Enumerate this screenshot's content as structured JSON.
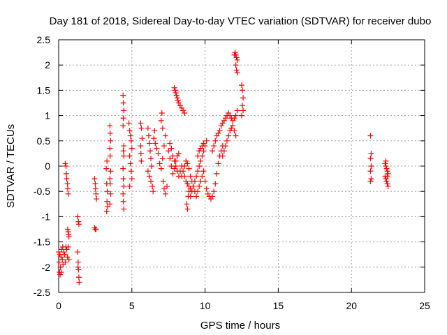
{
  "chart_data": {
    "type": "scatter",
    "title": "Day 181 of 2018, Sidereal Day-to-day VTEC variation (SDTVAR) for receiver dubo",
    "xlabel": "GPS time / hours",
    "ylabel": "SDTVAR / TECUs",
    "xlim": [
      0,
      25
    ],
    "ylim": [
      -2.5,
      2.5
    ],
    "xticks": [
      "0",
      "5",
      "10",
      "15",
      "20",
      "25"
    ],
    "yticks": [
      "-2.5",
      "-2",
      "-1.5",
      "-1",
      "-0.5",
      "0",
      "0.5",
      "1",
      "1.5",
      "2",
      "2.5"
    ],
    "grid": true,
    "marker": "+",
    "color": "#ff0000",
    "series": [
      {
        "name": "SDTVAR",
        "points": [
          [
            0.0,
            -1.7
          ],
          [
            0.03,
            -1.9
          ],
          [
            0.06,
            -2.1
          ],
          [
            0.1,
            -2.15
          ],
          [
            0.13,
            -2.0
          ],
          [
            0.16,
            -1.8
          ],
          [
            0.2,
            -1.65
          ],
          [
            0.25,
            -1.85
          ],
          [
            0.3,
            -1.95
          ],
          [
            0.35,
            -1.7
          ],
          [
            0.4,
            -1.75
          ],
          [
            0.45,
            -1.9
          ],
          [
            0.5,
            -1.6
          ],
          [
            0.55,
            -1.65
          ],
          [
            0.6,
            -1.8
          ],
          [
            0.65,
            -1.6
          ],
          [
            0.7,
            -1.85
          ],
          [
            0.08,
            -1.75
          ],
          [
            0.18,
            -2.1
          ],
          [
            0.28,
            -1.6
          ],
          [
            0.45,
            0.05
          ],
          [
            0.5,
            0.0
          ],
          [
            0.52,
            -0.15
          ],
          [
            0.55,
            -0.25
          ],
          [
            0.6,
            -0.35
          ],
          [
            0.62,
            -0.45
          ],
          [
            0.65,
            -0.55
          ],
          [
            0.62,
            -1.25
          ],
          [
            0.65,
            -1.3
          ],
          [
            0.68,
            -1.35
          ],
          [
            0.7,
            -1.4
          ],
          [
            1.3,
            -1.0
          ],
          [
            1.35,
            -1.1
          ],
          [
            1.38,
            -1.15
          ],
          [
            1.3,
            -1.7
          ],
          [
            1.33,
            -1.9
          ],
          [
            1.35,
            -2.05
          ],
          [
            1.38,
            -2.2
          ],
          [
            1.4,
            -2.3
          ],
          [
            1.32,
            -2.0
          ],
          [
            2.45,
            -1.22
          ],
          [
            2.5,
            -1.25
          ],
          [
            2.55,
            -1.25
          ],
          [
            2.45,
            -0.25
          ],
          [
            2.5,
            -0.35
          ],
          [
            2.52,
            -0.45
          ],
          [
            2.55,
            -0.55
          ],
          [
            2.58,
            -0.65
          ],
          [
            3.25,
            -0.05
          ],
          [
            3.3,
            0.1
          ],
          [
            3.28,
            -0.35
          ],
          [
            3.32,
            -0.5
          ],
          [
            3.3,
            -0.7
          ],
          [
            3.35,
            -0.8
          ],
          [
            3.28,
            -0.9
          ],
          [
            3.5,
            0.8
          ],
          [
            3.52,
            0.65
          ],
          [
            3.55,
            0.5
          ],
          [
            3.5,
            0.35
          ],
          [
            3.52,
            0.2
          ],
          [
            3.55,
            -0.1
          ],
          [
            3.5,
            -0.25
          ],
          [
            3.52,
            -0.35
          ],
          [
            3.55,
            -0.55
          ],
          [
            3.5,
            -0.75
          ],
          [
            4.4,
            1.4
          ],
          [
            4.42,
            1.25
          ],
          [
            4.45,
            1.1
          ],
          [
            4.42,
            0.95
          ],
          [
            4.4,
            0.8
          ],
          [
            4.45,
            0.4
          ],
          [
            4.42,
            0.3
          ],
          [
            4.45,
            0.2
          ],
          [
            4.4,
            -0.05
          ],
          [
            4.42,
            -0.25
          ],
          [
            4.45,
            -0.4
          ],
          [
            4.4,
            -0.55
          ],
          [
            4.42,
            -0.7
          ],
          [
            4.45,
            -0.85
          ],
          [
            4.8,
            0.85
          ],
          [
            4.85,
            0.7
          ],
          [
            4.9,
            0.6
          ],
          [
            4.95,
            0.5
          ],
          [
            5.0,
            0.35
          ],
          [
            4.85,
            0.2
          ],
          [
            4.9,
            0.05
          ],
          [
            4.95,
            -0.1
          ],
          [
            5.0,
            -0.25
          ],
          [
            4.85,
            -0.4
          ],
          [
            5.6,
            0.85
          ],
          [
            5.65,
            0.75
          ],
          [
            5.7,
            0.55
          ],
          [
            5.6,
            0.4
          ],
          [
            5.62,
            0.25
          ],
          [
            5.65,
            0.1
          ],
          [
            6.1,
            0.75
          ],
          [
            6.15,
            0.6
          ],
          [
            6.2,
            0.45
          ],
          [
            6.25,
            0.3
          ],
          [
            6.3,
            0.15
          ],
          [
            6.35,
            0.0
          ],
          [
            6.1,
            -0.1
          ],
          [
            6.2,
            -0.2
          ],
          [
            6.3,
            -0.3
          ],
          [
            6.4,
            -0.4
          ],
          [
            6.45,
            -0.5
          ],
          [
            6.5,
            0.55
          ],
          [
            6.55,
            0.7
          ],
          [
            6.6,
            0.45
          ],
          [
            6.7,
            0.35
          ],
          [
            6.8,
            0.25
          ],
          [
            6.9,
            0.05
          ],
          [
            7.0,
            -0.05
          ],
          [
            7.1,
            0.15
          ],
          [
            7.2,
            0.4
          ],
          [
            7.3,
            0.6
          ],
          [
            7.0,
            0.9
          ],
          [
            7.05,
            1.05
          ],
          [
            7.1,
            0.75
          ],
          [
            7.15,
            -0.3
          ],
          [
            7.2,
            -0.45
          ],
          [
            7.3,
            -0.55
          ],
          [
            7.4,
            -0.4
          ],
          [
            7.5,
            0.3
          ],
          [
            7.6,
            0.15
          ],
          [
            7.7,
            0.0
          ],
          [
            7.8,
            -0.15
          ],
          [
            7.9,
            -0.05
          ],
          [
            8.0,
            0.1
          ],
          [
            8.1,
            0.2
          ],
          [
            8.2,
            0.25
          ],
          [
            7.6,
            0.45
          ],
          [
            7.7,
            0.35
          ],
          [
            7.8,
            0.2
          ],
          [
            7.9,
            0.1
          ],
          [
            8.0,
            0.0
          ],
          [
            8.1,
            -0.1
          ],
          [
            8.2,
            -0.2
          ],
          [
            8.3,
            -0.1
          ],
          [
            8.4,
            0.0
          ],
          [
            7.9,
            1.55
          ],
          [
            7.95,
            1.5
          ],
          [
            8.0,
            1.45
          ],
          [
            8.05,
            1.4
          ],
          [
            8.1,
            1.35
          ],
          [
            8.15,
            1.3
          ],
          [
            8.2,
            1.25
          ],
          [
            8.3,
            1.2
          ],
          [
            8.4,
            1.15
          ],
          [
            8.5,
            1.1
          ],
          [
            8.6,
            1.05
          ],
          [
            8.4,
            -0.2
          ],
          [
            8.5,
            -0.1
          ],
          [
            8.6,
            -0.2
          ],
          [
            8.7,
            -0.3
          ],
          [
            8.8,
            -0.35
          ],
          [
            8.9,
            -0.4
          ],
          [
            9.0,
            -0.45
          ],
          [
            8.6,
            0.0
          ],
          [
            8.7,
            0.1
          ],
          [
            8.8,
            0.05
          ],
          [
            8.9,
            -0.05
          ],
          [
            8.75,
            -0.75
          ],
          [
            8.8,
            -0.85
          ],
          [
            8.85,
            -0.6
          ],
          [
            8.9,
            -0.5
          ],
          [
            9.0,
            -0.6
          ],
          [
            9.1,
            -0.5
          ],
          [
            9.2,
            -0.4
          ],
          [
            9.3,
            -0.3
          ],
          [
            9.4,
            -0.2
          ],
          [
            9.5,
            -0.1
          ],
          [
            9.6,
            0.0
          ],
          [
            9.7,
            0.1
          ],
          [
            9.8,
            0.2
          ],
          [
            9.9,
            0.3
          ],
          [
            10.0,
            0.4
          ],
          [
            10.1,
            0.5
          ],
          [
            9.0,
            -0.2
          ],
          [
            9.1,
            -0.3
          ],
          [
            9.2,
            -0.4
          ],
          [
            9.3,
            -0.5
          ],
          [
            9.4,
            -0.6
          ],
          [
            9.5,
            -0.5
          ],
          [
            9.6,
            -0.4
          ],
          [
            9.7,
            -0.3
          ],
          [
            9.8,
            -0.2
          ],
          [
            9.9,
            -0.1
          ],
          [
            9.5,
            0.2
          ],
          [
            9.6,
            0.3
          ],
          [
            9.7,
            0.35
          ],
          [
            9.8,
            0.4
          ],
          [
            9.9,
            0.45
          ],
          [
            10.0,
            -0.3
          ],
          [
            10.1,
            -0.45
          ],
          [
            10.2,
            -0.55
          ],
          [
            10.3,
            -0.6
          ],
          [
            10.4,
            -0.65
          ],
          [
            10.5,
            -0.6
          ],
          [
            10.6,
            -0.5
          ],
          [
            10.7,
            -0.35
          ],
          [
            10.8,
            -0.15
          ],
          [
            10.9,
            0.05
          ],
          [
            11.0,
            0.2
          ],
          [
            11.1,
            0.3
          ],
          [
            11.2,
            0.4
          ],
          [
            10.5,
            0.3
          ],
          [
            10.6,
            0.4
          ],
          [
            10.7,
            0.5
          ],
          [
            10.8,
            0.6
          ],
          [
            10.9,
            0.65
          ],
          [
            11.0,
            0.7
          ],
          [
            11.1,
            0.8
          ],
          [
            11.2,
            0.85
          ],
          [
            11.3,
            0.9
          ],
          [
            11.4,
            0.95
          ],
          [
            11.5,
            1.0
          ],
          [
            11.6,
            1.05
          ],
          [
            11.7,
            1.0
          ],
          [
            11.8,
            0.95
          ],
          [
            11.9,
            0.9
          ],
          [
            12.0,
            0.95
          ],
          [
            12.1,
            1.0
          ],
          [
            12.2,
            1.1
          ],
          [
            11.2,
            0.2
          ],
          [
            11.3,
            0.3
          ],
          [
            11.4,
            0.4
          ],
          [
            11.5,
            0.5
          ],
          [
            11.6,
            0.6
          ],
          [
            11.7,
            0.7
          ],
          [
            11.8,
            0.75
          ],
          [
            11.9,
            0.8
          ],
          [
            12.0,
            0.7
          ],
          [
            12.1,
            0.6
          ],
          [
            12.0,
            2.2
          ],
          [
            12.05,
            2.25
          ],
          [
            12.1,
            2.2
          ],
          [
            12.15,
            2.15
          ],
          [
            12.2,
            2.1
          ],
          [
            12.1,
            2.0
          ],
          [
            12.15,
            1.9
          ],
          [
            12.2,
            1.85
          ],
          [
            12.5,
            1.6
          ],
          [
            12.55,
            1.5
          ],
          [
            12.6,
            1.35
          ],
          [
            12.55,
            1.2
          ],
          [
            12.6,
            1.1
          ],
          [
            12.5,
            1.0
          ],
          [
            21.3,
            0.6
          ],
          [
            21.35,
            0.25
          ],
          [
            21.3,
            0.15
          ],
          [
            21.35,
            0.0
          ],
          [
            21.3,
            -0.1
          ],
          [
            21.35,
            -0.25
          ],
          [
            21.3,
            -0.3
          ],
          [
            22.3,
            0.05
          ],
          [
            22.35,
            0.0
          ],
          [
            22.4,
            -0.05
          ],
          [
            22.45,
            -0.1
          ],
          [
            22.5,
            -0.15
          ],
          [
            22.3,
            -0.2
          ],
          [
            22.35,
            -0.25
          ],
          [
            22.4,
            -0.3
          ],
          [
            22.45,
            -0.35
          ],
          [
            22.5,
            -0.4
          ],
          [
            22.35,
            0.1
          ],
          [
            22.45,
            -0.2
          ]
        ]
      }
    ]
  }
}
